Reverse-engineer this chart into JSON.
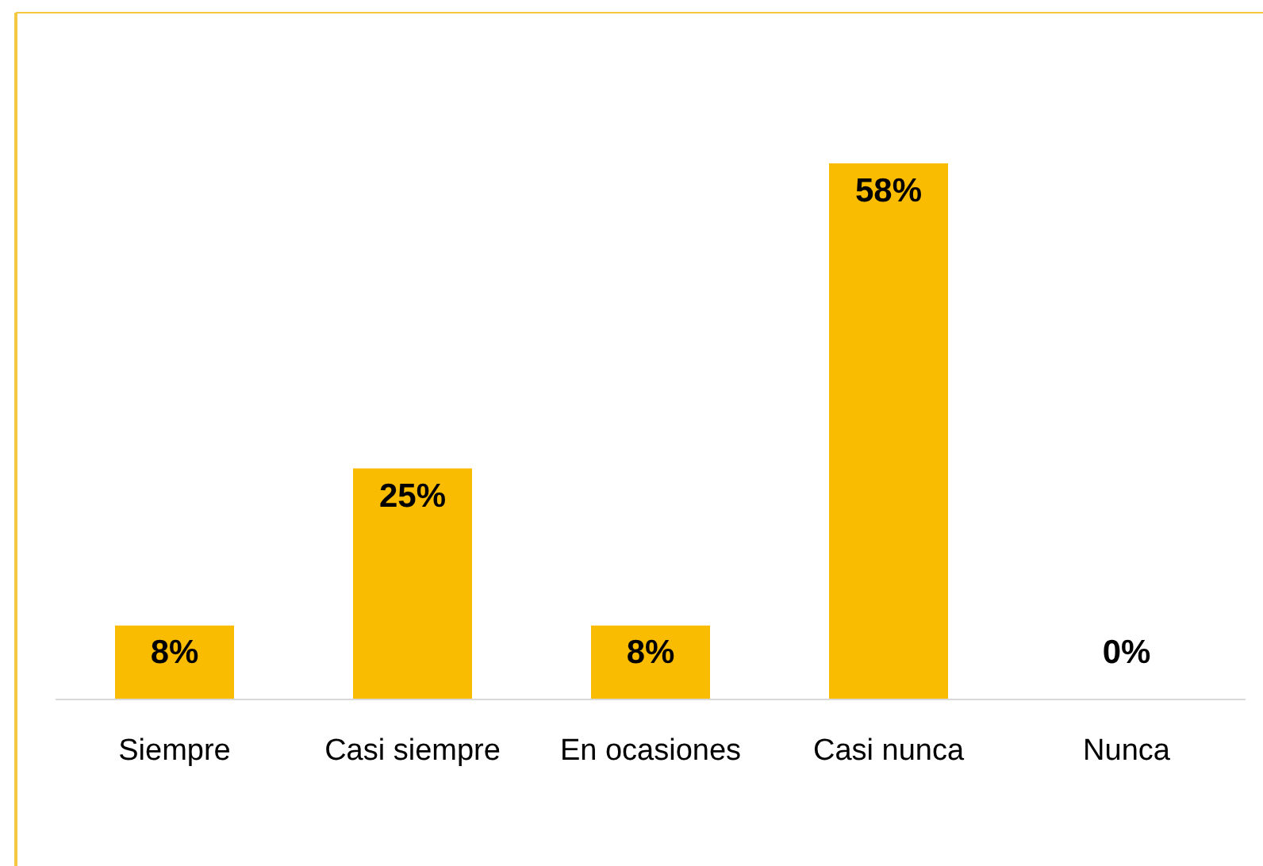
{
  "chart_data": {
    "type": "bar",
    "categories": [
      "Siempre",
      "Casi siempre",
      "En ocasiones",
      "Casi nunca",
      "Nunca"
    ],
    "values": [
      8,
      25,
      8,
      58,
      0
    ],
    "value_labels": [
      "8%",
      "25%",
      "8%",
      "58%",
      "0%"
    ],
    "color": "#f9bc00"
  }
}
